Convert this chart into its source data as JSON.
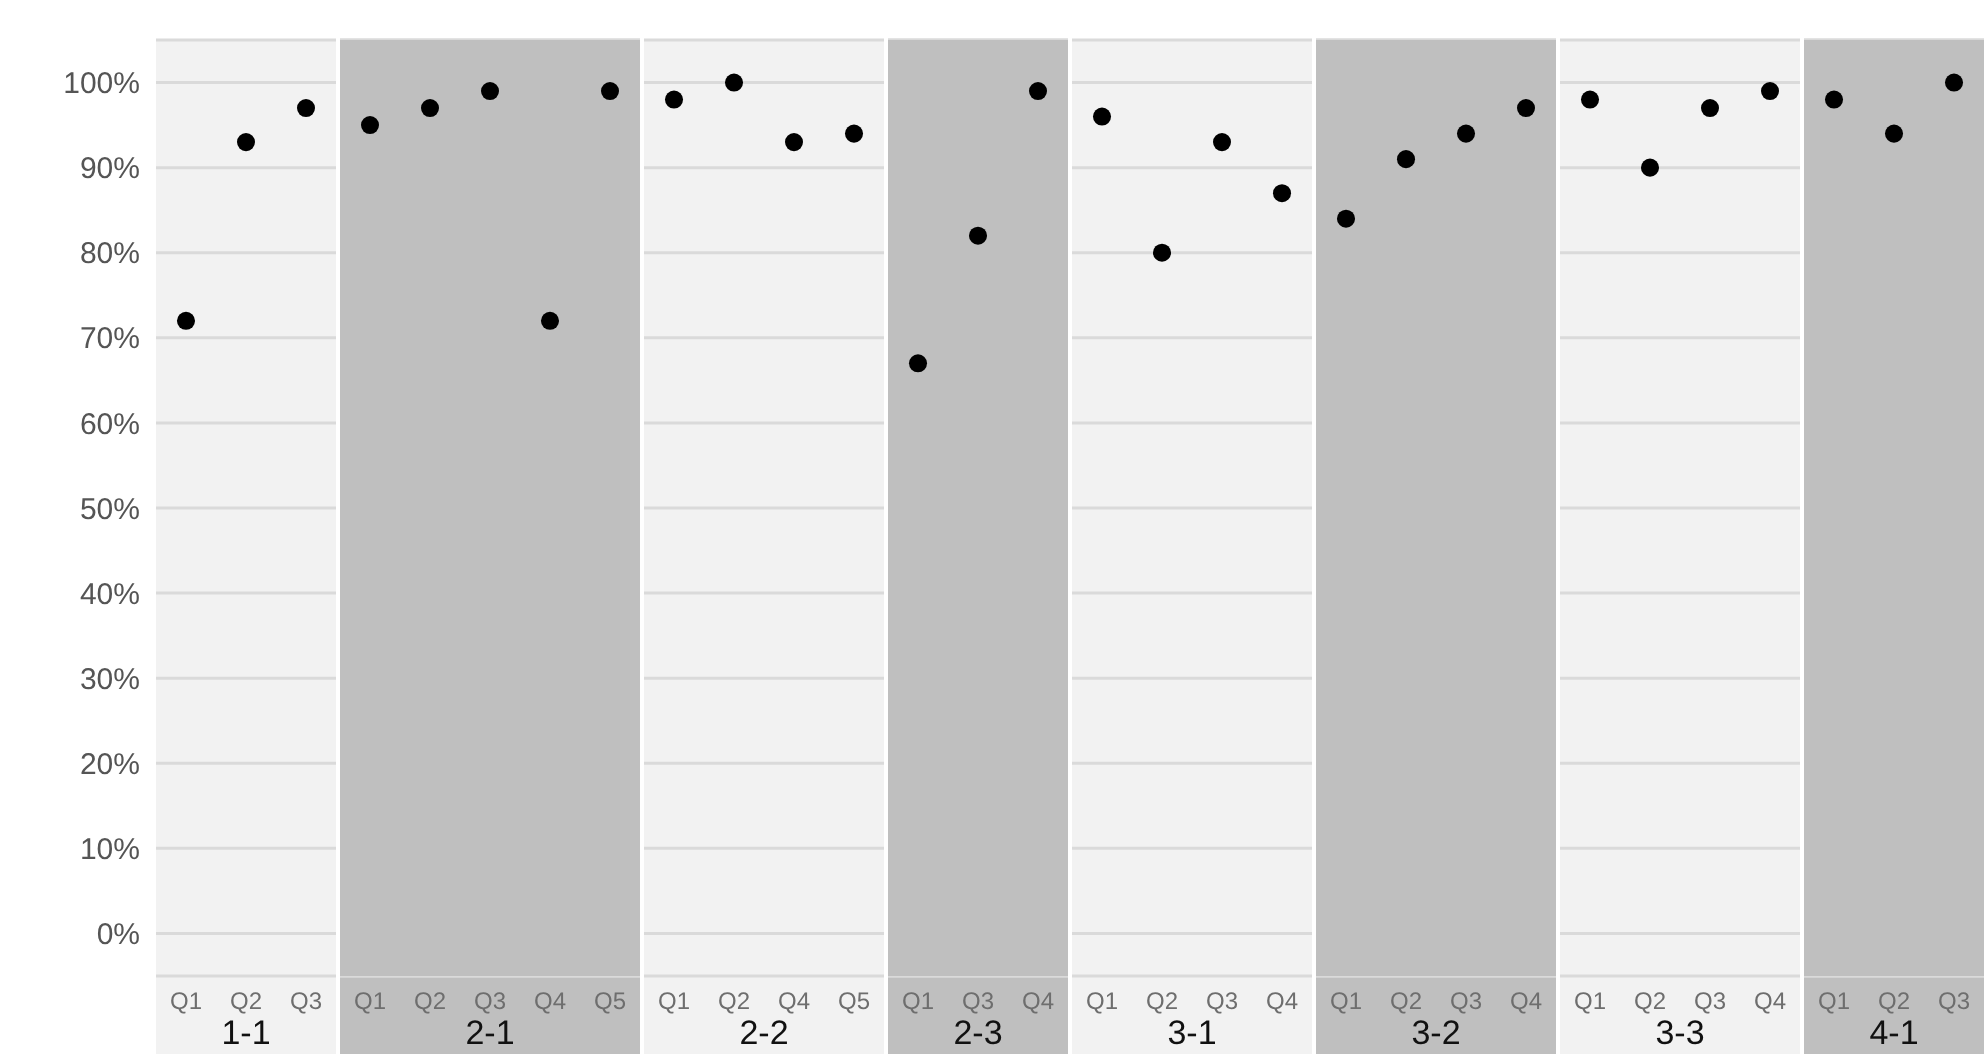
{
  "chart_data": [
    {
      "type": "scatter",
      "xlabel": "1-1",
      "categories": [
        "Q1",
        "Q2",
        "Q3"
      ],
      "series": [
        {
          "color": "#000000",
          "values": [
            72,
            93,
            97
          ]
        }
      ],
      "ylim": [
        -5,
        105
      ],
      "yticks": [
        {
          "value": 0,
          "label": "0%"
        },
        {
          "value": 10,
          "label": "10%"
        },
        {
          "value": 20,
          "label": "20%"
        },
        {
          "value": 30,
          "label": "30%"
        },
        {
          "value": 40,
          "label": "40%"
        },
        {
          "value": 50,
          "label": "50%"
        },
        {
          "value": 60,
          "label": "60%"
        },
        {
          "value": 70,
          "label": "70%"
        },
        {
          "value": 80,
          "label": "80%"
        },
        {
          "value": 90,
          "label": "90%"
        },
        {
          "value": 100,
          "label": "100%"
        }
      ],
      "grid": "y",
      "marker": "circle"
    },
    {
      "type": "scatter",
      "xlabel": "2-1",
      "categories": [
        "Q1",
        "Q2",
        "Q3",
        "Q4",
        "Q5"
      ],
      "series": [
        {
          "color": "#000000",
          "values": [
            95,
            97,
            99,
            72,
            99
          ]
        }
      ],
      "ylim": [
        -5,
        105
      ],
      "yticks": [
        0,
        10,
        20,
        30,
        40,
        50,
        60,
        70,
        80,
        90,
        100
      ],
      "grid": "y",
      "marker": "circle",
      "tick_labels": "x",
      "bands": [
        {
          "axis": "y",
          "from": -5,
          "to": 105,
          "color": "#bfbfbf"
        }
      ]
    },
    {
      "type": "scatter",
      "xlabel": "2-2",
      "categories": [
        "Q1",
        "Q2",
        "Q4",
        "Q5"
      ],
      "series": [
        {
          "color": "#000000",
          "values": [
            98,
            100,
            93,
            94
          ]
        }
      ],
      "ylim": [
        -5,
        105
      ],
      "yticks": [
        0,
        10,
        20,
        30,
        40,
        50,
        60,
        70,
        80,
        90,
        100
      ],
      "grid": "y",
      "marker": "circle",
      "tick_labels": "x"
    },
    {
      "type": "scatter",
      "xlabel": "2-3",
      "categories": [
        "Q1",
        "Q3",
        "Q4"
      ],
      "series": [
        {
          "color": "#000000",
          "values": [
            67,
            82,
            99
          ]
        }
      ],
      "ylim": [
        -5,
        105
      ],
      "yticks": [
        0,
        10,
        20,
        30,
        40,
        50,
        60,
        70,
        80,
        90,
        100
      ],
      "grid": "y",
      "marker": "circle",
      "tick_labels": "x",
      "bands": [
        {
          "axis": "y",
          "from": -5,
          "to": 105,
          "color": "#bfbfbf"
        }
      ]
    },
    {
      "type": "scatter",
      "xlabel": "3-1",
      "categories": [
        "Q1",
        "Q2",
        "Q3",
        "Q4"
      ],
      "series": [
        {
          "color": "#000000",
          "values": [
            96,
            80,
            93,
            87
          ]
        }
      ],
      "ylim": [
        -5,
        105
      ],
      "yticks": [
        0,
        10,
        20,
        30,
        40,
        50,
        60,
        70,
        80,
        90,
        100
      ],
      "grid": "y",
      "marker": "circle",
      "tick_labels": "x"
    },
    {
      "type": "scatter",
      "xlabel": "3-2",
      "categories": [
        "Q1",
        "Q2",
        "Q3",
        "Q4"
      ],
      "series": [
        {
          "color": "#000000",
          "values": [
            84,
            91,
            94,
            97
          ]
        }
      ],
      "ylim": [
        -5,
        105
      ],
      "yticks": [
        0,
        10,
        20,
        30,
        40,
        50,
        60,
        70,
        80,
        90,
        100
      ],
      "grid": "y",
      "marker": "circle",
      "tick_labels": "x",
      "bands": [
        {
          "axis": "y",
          "from": -5,
          "to": 105,
          "color": "#bfbfbf"
        }
      ]
    },
    {
      "type": "scatter",
      "xlabel": "3-3",
      "categories": [
        "Q1",
        "Q2",
        "Q3",
        "Q4"
      ],
      "series": [
        {
          "color": "#000000",
          "values": [
            98,
            90,
            97,
            99
          ]
        }
      ],
      "ylim": [
        -5,
        105
      ],
      "yticks": [
        0,
        10,
        20,
        30,
        40,
        50,
        60,
        70,
        80,
        90,
        100
      ],
      "grid": "y",
      "marker": "circle",
      "tick_labels": "x"
    },
    {
      "type": "scatter",
      "xlabel": "4-1",
      "categories": [
        "Q1",
        "Q2",
        "Q3"
      ],
      "series": [
        {
          "color": "#000000",
          "values": [
            98,
            94,
            100
          ]
        }
      ],
      "ylim": [
        -5,
        105
      ],
      "yticks": [
        0,
        10,
        20,
        30,
        40,
        50,
        60,
        70,
        80,
        90,
        100
      ],
      "grid": "y",
      "marker": "circle",
      "tick_labels": "x",
      "bands": [
        {
          "axis": "y",
          "from": -5,
          "to": 105,
          "color": "#bfbfbf"
        }
      ]
    }
  ]
}
